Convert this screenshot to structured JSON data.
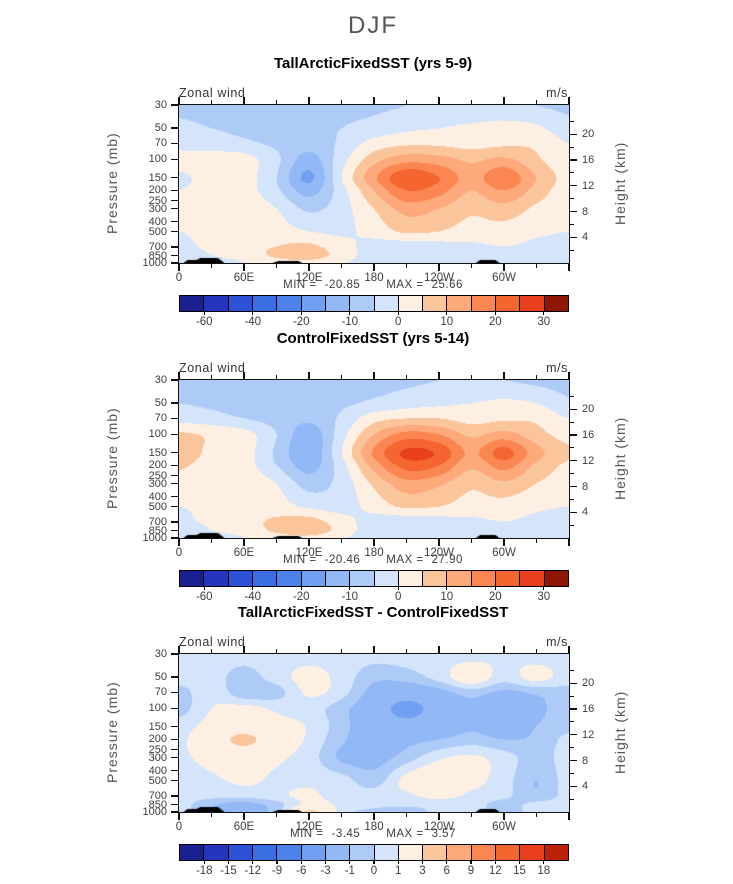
{
  "figure": {
    "title": "DJF"
  },
  "palette": {
    "fill_colors": [
      "#1b2091",
      "#2336bd",
      "#2c52d6",
      "#3a6fe4",
      "#4d82ea",
      "#719ff1",
      "#92b8f5",
      "#aecbf8",
      "#d4e4fb",
      "#fdf0e3",
      "#fbc59c",
      "#fda97c",
      "#fb8651",
      "#f4652f",
      "#e8401c",
      "#bb2208"
    ],
    "colorbar_end_color": "#8e1703",
    "topography_color": "#000000",
    "axis_color": "#111111"
  },
  "axes": {
    "pressure_label": "Pressure (mb)",
    "height_label": "Height (km)",
    "pressure_ticks": [
      {
        "label": "30",
        "value": 30
      },
      {
        "label": "50",
        "value": 50
      },
      {
        "label": "70",
        "value": 70
      },
      {
        "label": "100",
        "value": 100
      },
      {
        "label": "150",
        "value": 150
      },
      {
        "label": "200",
        "value": 200
      },
      {
        "label": "250",
        "value": 250
      },
      {
        "label": "300",
        "value": 300
      },
      {
        "label": "400",
        "value": 400
      },
      {
        "label": "500",
        "value": 500
      },
      {
        "label": "700",
        "value": 700
      },
      {
        "label": "850",
        "value": 850
      },
      {
        "label": "1000",
        "value": 1000
      }
    ],
    "height_major_ticks": [
      {
        "label": "20",
        "value": 20
      },
      {
        "label": "16",
        "value": 16
      },
      {
        "label": "12",
        "value": 12
      },
      {
        "label": "8",
        "value": 8
      },
      {
        "label": "4",
        "value": 4
      }
    ],
    "height_minor_ticks": [
      22,
      18,
      14,
      10,
      6,
      2
    ],
    "lon_major_ticks": [
      {
        "label": "0",
        "value": 0
      },
      {
        "label": "60E",
        "value": 60
      },
      {
        "label": "120E",
        "value": 120
      },
      {
        "label": "180",
        "value": 180
      },
      {
        "label": "120W",
        "value": 240
      },
      {
        "label": "60W",
        "value": 300
      },
      {
        "label": "",
        "value": 360
      }
    ],
    "lon_minor_ticks": [
      30,
      90,
      150,
      210,
      270,
      330
    ]
  },
  "topography": [
    {
      "points": [
        [
          4,
          0
        ],
        [
          8,
          3
        ],
        [
          16,
          3
        ],
        [
          20,
          5
        ],
        [
          36,
          5
        ],
        [
          42,
          0
        ]
      ]
    },
    {
      "points": [
        [
          86,
          0
        ],
        [
          92,
          2
        ],
        [
          110,
          2
        ],
        [
          114,
          0
        ]
      ]
    },
    {
      "points": [
        [
          274,
          0
        ],
        [
          278,
          3
        ],
        [
          292,
          3
        ],
        [
          296,
          0
        ]
      ]
    }
  ],
  "panels": [
    {
      "title": "TallArcticFixedSST (yrs 5-9)",
      "plot_label": "Zonal wind",
      "units": "m/s",
      "min_label": "MIN =",
      "min_value": "-20.85",
      "max_label": "MAX =",
      "max_value": "25.66",
      "colorbar": {
        "tick_indices": [
          1,
          3,
          5,
          7,
          9,
          11,
          13,
          15
        ],
        "tick_labels": [
          "-60",
          "-40",
          "-20",
          "-10",
          "0",
          "10",
          "20",
          "30"
        ]
      }
    },
    {
      "title": "ControlFixedSST (yrs 5-14)",
      "plot_label": "Zonal wind",
      "units": "m/s",
      "min_label": "MIN =",
      "min_value": "-20.46",
      "max_label": "MAX =",
      "max_value": "27.90",
      "colorbar": {
        "tick_indices": [
          1,
          3,
          5,
          7,
          9,
          11,
          13,
          15
        ],
        "tick_labels": [
          "-60",
          "-40",
          "-20",
          "-10",
          "0",
          "10",
          "20",
          "30"
        ]
      }
    },
    {
      "title": "TallArcticFixedSST - ControlFixedSST",
      "plot_label": "Zonal wind",
      "units": "m/s",
      "min_label": "MIN =",
      "min_value": "-3.45",
      "max_label": "MAX =",
      "max_value": "3.57",
      "colorbar": {
        "tick_indices": [
          1,
          2,
          3,
          4,
          5,
          6,
          7,
          8,
          9,
          10,
          11,
          12,
          13,
          14,
          15
        ],
        "tick_labels": [
          "-18",
          "-15",
          "-12",
          "-9",
          "-6",
          "-3",
          "-1",
          "0",
          "1",
          "3",
          "6",
          "9",
          "12",
          "15",
          "18"
        ]
      }
    }
  ],
  "chart_data": [
    {
      "type": "contour",
      "title": "TallArcticFixedSST (yrs 5-9)",
      "variable": "Zonal wind",
      "units": "m/s",
      "season": "DJF",
      "min": -20.85,
      "max": 25.66,
      "contour_edges": [
        -70,
        -60,
        -50,
        -40,
        -30,
        -20,
        -15,
        -10,
        -5,
        0,
        5,
        10,
        15,
        20,
        25,
        30,
        35
      ],
      "x_longitudes": [
        0,
        30,
        60,
        90,
        120,
        150,
        180,
        210,
        240,
        270,
        300,
        330,
        360
      ],
      "y_pressures_mb": [
        30,
        50,
        70,
        100,
        150,
        200,
        300,
        500,
        700,
        850,
        1000
      ],
      "values_ms": [
        [
          -6,
          -7,
          -8,
          -8,
          -8,
          -7,
          -6,
          -5,
          -4,
          -4,
          -4,
          -5,
          -6
        ],
        [
          -4,
          -5,
          -6,
          -7,
          -7,
          -5,
          -3,
          -1,
          0,
          1,
          2,
          1,
          -3
        ],
        [
          -2,
          -3,
          -4,
          -6,
          -8,
          -4,
          2,
          4,
          4,
          3,
          4,
          4,
          0
        ],
        [
          2,
          3,
          2,
          -4,
          -12,
          -2,
          8,
          13,
          12,
          9,
          11,
          6,
          1
        ],
        [
          -1,
          2,
          2,
          -5,
          -16,
          0,
          14,
          24,
          20,
          13,
          19,
          10,
          3
        ],
        [
          0,
          2,
          2,
          -4,
          -12,
          -2,
          10,
          20,
          17,
          10,
          15,
          8,
          2
        ],
        [
          1,
          2,
          3,
          0,
          -6,
          -2,
          5,
          12,
          10,
          6,
          8,
          4,
          1
        ],
        [
          0,
          1,
          2,
          2,
          0,
          -1,
          2,
          6,
          5,
          3,
          3,
          1,
          0
        ],
        [
          -1,
          1,
          3,
          5,
          6,
          2,
          -2,
          -3,
          -2,
          -1,
          0,
          -1,
          -2
        ],
        [
          -3,
          0,
          2,
          6,
          7,
          3,
          -3,
          -4,
          -3,
          -2,
          -1,
          -2,
          -3
        ],
        [
          -4,
          -2,
          0,
          3,
          4,
          1,
          -4,
          -5,
          -4,
          -3,
          -2,
          -3,
          -4
        ]
      ]
    },
    {
      "type": "contour",
      "title": "ControlFixedSST (yrs 5-14)",
      "variable": "Zonal wind",
      "units": "m/s",
      "season": "DJF",
      "min": -20.46,
      "max": 27.9,
      "contour_edges": [
        -70,
        -60,
        -50,
        -40,
        -30,
        -20,
        -15,
        -10,
        -5,
        0,
        5,
        10,
        15,
        20,
        25,
        30,
        35
      ],
      "x_longitudes": [
        0,
        30,
        60,
        90,
        120,
        150,
        180,
        210,
        240,
        270,
        300,
        330,
        360
      ],
      "y_pressures_mb": [
        30,
        50,
        70,
        100,
        150,
        200,
        300,
        500,
        700,
        850,
        1000
      ],
      "values_ms": [
        [
          -7,
          -8,
          -9,
          -9,
          -9,
          -8,
          -7,
          -6,
          -5,
          -5,
          -5,
          -6,
          -7
        ],
        [
          -5,
          -6,
          -7,
          -8,
          -8,
          -6,
          -4,
          -2,
          -1,
          0,
          1,
          0,
          -4
        ],
        [
          -2,
          -3,
          -5,
          -7,
          -9,
          -4,
          3,
          5,
          5,
          3,
          4,
          4,
          0
        ],
        [
          6,
          4,
          2,
          -5,
          -13,
          -2,
          10,
          17,
          15,
          9,
          12,
          7,
          3
        ],
        [
          10,
          3,
          2,
          -6,
          -14,
          0,
          16,
          26,
          24,
          14,
          22,
          12,
          6
        ],
        [
          6,
          2,
          2,
          -5,
          -12,
          -2,
          12,
          22,
          20,
          11,
          17,
          9,
          4
        ],
        [
          2,
          2,
          3,
          0,
          -7,
          -3,
          6,
          13,
          11,
          6,
          9,
          5,
          2
        ],
        [
          0,
          1,
          2,
          2,
          -1,
          -2,
          2,
          6,
          5,
          3,
          3,
          1,
          0
        ],
        [
          -1,
          1,
          3,
          6,
          7,
          2,
          -2,
          -3,
          -2,
          -1,
          0,
          -1,
          -2
        ],
        [
          -4,
          0,
          2,
          6,
          8,
          3,
          -3,
          -4,
          -3,
          -2,
          -1,
          -2,
          -4
        ],
        [
          -5,
          -2,
          0,
          3,
          4,
          1,
          -4,
          -5,
          -4,
          -3,
          -2,
          -3,
          -5
        ]
      ]
    },
    {
      "type": "contour",
      "title": "TallArcticFixedSST - ControlFixedSST",
      "variable": "Zonal wind difference",
      "units": "m/s",
      "season": "DJF",
      "min": -3.45,
      "max": 3.57,
      "contour_edges": [
        -21,
        -18,
        -15,
        -12,
        -9,
        -6,
        -3,
        -1,
        0,
        1,
        3,
        6,
        9,
        12,
        15,
        18,
        21
      ],
      "x_longitudes": [
        0,
        30,
        60,
        90,
        120,
        150,
        180,
        210,
        240,
        270,
        300,
        330,
        360
      ],
      "y_pressures_mb": [
        30,
        50,
        70,
        100,
        150,
        200,
        300,
        500,
        700,
        850,
        1000
      ],
      "values_ms": [
        [
          0.5,
          0.5,
          0.4,
          0.5,
          0.6,
          0.5,
          0.4,
          0.5,
          0.5,
          0.6,
          0.8,
          0.5,
          0.5
        ],
        [
          0.5,
          0.4,
          -0.4,
          0.5,
          1.4,
          0.6,
          -0.7,
          -0.5,
          0.4,
          1.8,
          0.5,
          1.4,
          0.5
        ],
        [
          -0.4,
          0.7,
          -0.7,
          -0.4,
          1.2,
          0.4,
          -1.5,
          -2.2,
          -1.5,
          -0.5,
          -1.3,
          -0.8,
          -0.4
        ],
        [
          -0.4,
          1.0,
          1.4,
          0.8,
          0.5,
          -0.6,
          -2.2,
          -3.4,
          -2.4,
          -1.5,
          -2.8,
          -1.4,
          -0.4
        ],
        [
          0.5,
          1.5,
          2.0,
          1.4,
          0.9,
          -0.6,
          -2.0,
          -2.4,
          -2.0,
          -1.2,
          -1.8,
          -1.0,
          -0.3
        ],
        [
          0.8,
          2.0,
          3.4,
          1.8,
          0.8,
          -0.8,
          -1.8,
          -1.4,
          -1.0,
          -0.5,
          -1.0,
          -0.8,
          0.3
        ],
        [
          0.8,
          1.4,
          1.8,
          1.2,
          0.5,
          -1.2,
          -1.5,
          -0.5,
          0.8,
          1.2,
          0.5,
          -0.5,
          0.5
        ],
        [
          0.5,
          0.8,
          1.2,
          0.8,
          0.8,
          0.4,
          -0.5,
          1.4,
          2.2,
          1.4,
          0.5,
          -1.0,
          0.5
        ],
        [
          0.5,
          0.4,
          0.5,
          0.8,
          1.2,
          0.5,
          0.4,
          0.8,
          1.4,
          0.8,
          0.3,
          -0.8,
          0.4
        ],
        [
          0.4,
          -0.8,
          -1.4,
          -0.4,
          1.4,
          0.8,
          0.5,
          0.4,
          0.5,
          0.5,
          -0.4,
          0.3,
          0.4
        ],
        [
          0.4,
          -1.0,
          -1.8,
          -0.4,
          3.2,
          0.6,
          -0.4,
          -0.8,
          0.4,
          0.5,
          -0.5,
          0.4,
          0.4
        ]
      ]
    }
  ]
}
